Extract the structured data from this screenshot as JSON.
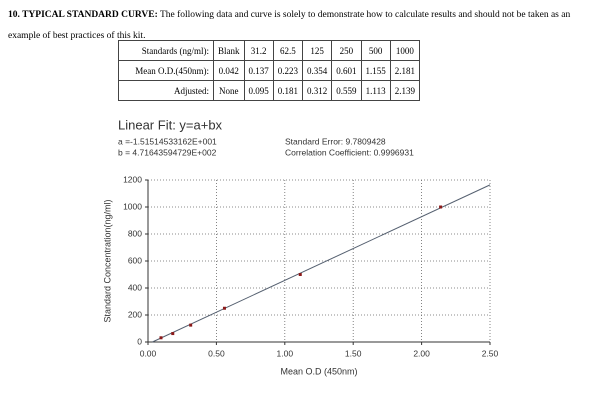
{
  "header": {
    "heading": "10. TYPICAL STANDARD CURVE:",
    "text": "The following data and curve is solely to demonstrate how to calculate results and should not be taken as an example of best practices of this kit."
  },
  "table": {
    "rows": [
      [
        "Standards (ng/ml):",
        "Blank",
        "31.2",
        "62.5",
        "125",
        "250",
        "500",
        "1000"
      ],
      [
        "Mean O.D.(450nm):",
        "0.042",
        "0.137",
        "0.223",
        "0.354",
        "0.601",
        "1.155",
        "2.181"
      ],
      [
        "Adjusted:",
        "None",
        "0.095",
        "0.181",
        "0.312",
        "0.559",
        "1.113",
        "2.139"
      ]
    ]
  },
  "chart_data": {
    "type": "scatter",
    "title": "Linear Fit: y=a+bx",
    "fit": {
      "a": {
        "value": -15.1514533162,
        "label": "a =-1.51514533162E+001"
      },
      "b": {
        "value": 471.643594729,
        "label": "b = 4.71643594729E+002"
      },
      "standard_error": "Standard Error: 9.7809428",
      "correlation": "Correlation Coefficient: 0.9996931"
    },
    "x_label": "Mean O.D (450nm)",
    "y_label": "Standard Concentration(ng/ml)",
    "x": [
      0.095,
      0.181,
      0.312,
      0.559,
      1.113,
      2.139
    ],
    "values": [
      31.2,
      62.5,
      125,
      250,
      500,
      1000
    ],
    "color": "#8b1a1a",
    "line_color": "#556070",
    "xlim": [
      0,
      2.5
    ],
    "ylim": [
      0,
      1200
    ],
    "xticks": [
      {
        "value": 0,
        "label": "0.00"
      },
      {
        "value": 0.5,
        "label": "0.50"
      },
      {
        "value": 1,
        "label": "1.00"
      },
      {
        "value": 1.5,
        "label": "1.50"
      },
      {
        "value": 2,
        "label": "2.00"
      },
      {
        "value": 2.5,
        "label": "2.50"
      }
    ],
    "yticks": [
      0,
      200,
      400,
      600,
      800,
      1000,
      1200
    ],
    "grid": true
  }
}
